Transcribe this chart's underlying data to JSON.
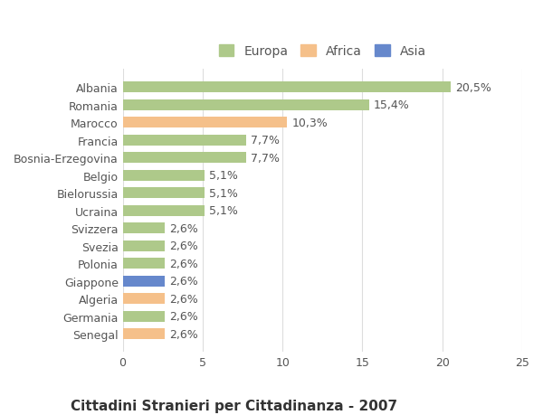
{
  "categories": [
    "Albania",
    "Romania",
    "Marocco",
    "Francia",
    "Bosnia-Erzegovina",
    "Belgio",
    "Bielorussia",
    "Ucraina",
    "Svizzera",
    "Svezia",
    "Polonia",
    "Giappone",
    "Algeria",
    "Germania",
    "Senegal"
  ],
  "values": [
    20.5,
    15.4,
    10.3,
    7.7,
    7.7,
    5.1,
    5.1,
    5.1,
    2.6,
    2.6,
    2.6,
    2.6,
    2.6,
    2.6,
    2.6
  ],
  "labels": [
    "20,5%",
    "15,4%",
    "10,3%",
    "7,7%",
    "7,7%",
    "5,1%",
    "5,1%",
    "5,1%",
    "2,6%",
    "2,6%",
    "2,6%",
    "2,6%",
    "2,6%",
    "2,6%",
    "2,6%"
  ],
  "continents": [
    "Europa",
    "Europa",
    "Africa",
    "Europa",
    "Europa",
    "Europa",
    "Europa",
    "Europa",
    "Europa",
    "Europa",
    "Europa",
    "Asia",
    "Africa",
    "Europa",
    "Africa"
  ],
  "continent_colors": {
    "Europa": "#aec98a",
    "Africa": "#f5c08a",
    "Asia": "#6688cc"
  },
  "legend_items": [
    "Europa",
    "Africa",
    "Asia"
  ],
  "title": "Cittadini Stranieri per Cittadinanza - 2007",
  "xlim": [
    0,
    25
  ],
  "xticks": [
    0,
    5,
    10,
    15,
    20,
    25
  ],
  "background_color": "#ffffff",
  "grid_color": "#dddddd",
  "bar_height": 0.6,
  "title_fontsize": 11,
  "subtitle_fontsize": 9,
  "label_fontsize": 9,
  "tick_fontsize": 9
}
